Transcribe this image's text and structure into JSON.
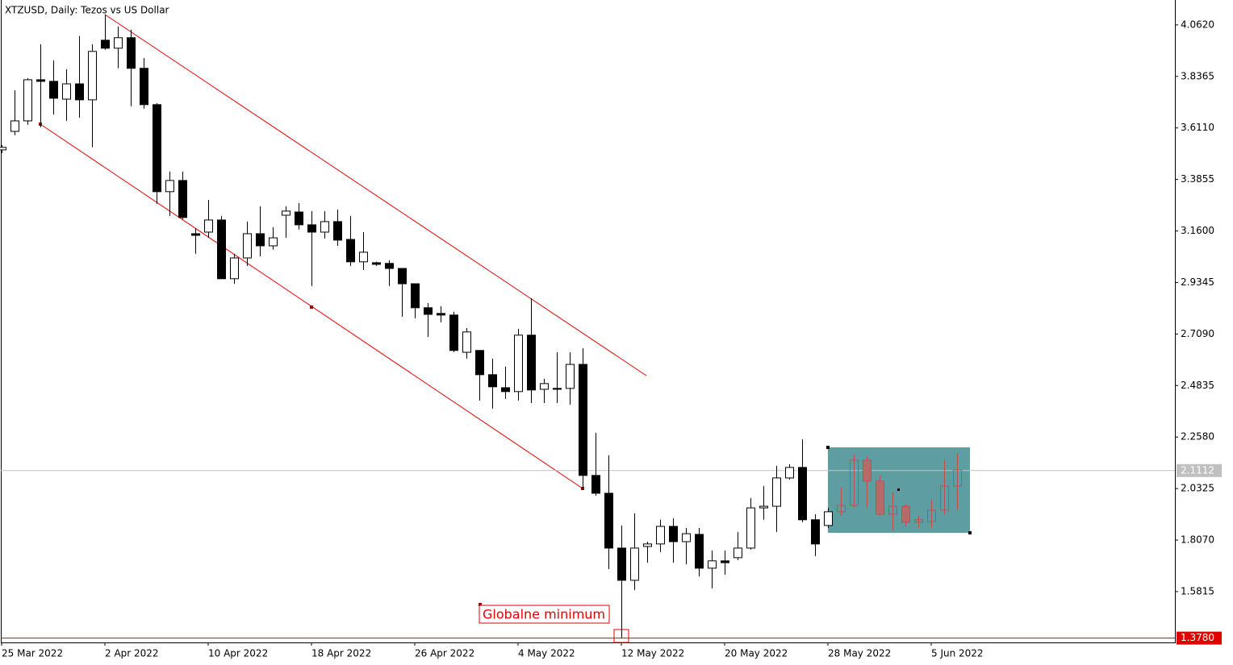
{
  "chart_data": {
    "type": "candlestick",
    "title": "XTZUSD, Daily:  Tezos vs US Dollar",
    "categories": [
      "25 Mar 2022",
      null,
      null,
      null,
      null,
      null,
      null,
      null,
      "2 Apr 2022",
      null,
      null,
      null,
      null,
      null,
      null,
      null,
      "10 Apr 2022",
      null,
      null,
      null,
      null,
      null,
      null,
      null,
      "18 Apr 2022",
      null,
      null,
      null,
      null,
      null,
      null,
      null,
      "26 Apr 2022",
      null,
      null,
      null,
      null,
      null,
      null,
      null,
      "4 May 2022",
      null,
      null,
      null,
      null,
      null,
      null,
      null,
      "12 May 2022",
      null,
      null,
      null,
      null,
      null,
      null,
      null,
      "20 May 2022",
      null,
      null,
      null,
      null,
      null,
      null,
      null,
      "28 May 2022",
      null,
      null,
      null,
      null,
      null,
      null,
      null,
      "5 Jun 2022",
      null,
      null
    ],
    "series": [
      {
        "up_color": "#ffffff",
        "down_color": "#000000",
        "line_color": "#000000",
        "open": [
          3.515,
          3.596,
          3.642,
          3.822,
          3.815,
          3.737,
          3.804,
          3.734,
          3.995,
          3.96,
          4.006,
          3.872,
          3.713,
          3.332,
          3.381,
          3.148,
          3.155,
          3.208,
          2.951,
          3.042,
          3.148,
          3.095,
          3.229,
          3.243,
          3.187,
          3.155,
          3.201,
          3.123,
          3.025,
          3.021,
          3.018,
          2.996,
          2.929,
          2.824,
          2.799,
          2.792,
          2.629,
          2.637,
          2.531,
          2.474,
          2.457,
          2.704,
          2.467,
          2.471,
          2.471,
          2.576,
          2.09,
          2.012,
          1.772,
          1.631,
          1.779,
          1.79,
          1.867,
          1.8,
          1.832,
          1.684,
          1.716,
          1.73,
          1.772,
          1.948,
          1.955,
          2.079,
          2.125,
          1.896,
          1.871,
          null,
          null,
          null,
          null,
          null,
          null,
          null,
          null,
          null,
          null
        ],
        "high": [
          3.536,
          3.776,
          3.829,
          3.977,
          3.907,
          3.868,
          4.013,
          3.977,
          4.108,
          4.055,
          4.041,
          3.917,
          3.72,
          3.42,
          3.42,
          3.173,
          3.296,
          3.226,
          3.06,
          3.201,
          3.268,
          3.176,
          3.268,
          3.282,
          3.247,
          3.247,
          3.254,
          3.226,
          3.155,
          3.025,
          3.032,
          2.996,
          2.929,
          2.845,
          2.831,
          2.806,
          2.735,
          2.637,
          2.601,
          2.566,
          2.732,
          2.866,
          2.513,
          2.629,
          2.629,
          2.647,
          2.277,
          2.178,
          1.871,
          1.924,
          1.8,
          1.896,
          1.903,
          1.86,
          1.86,
          1.761,
          1.761,
          1.843,
          1.991,
          2.044,
          2.132,
          2.139,
          2.248,
          1.92,
          1.948,
          null,
          null,
          null,
          null,
          null,
          null,
          null,
          null,
          null,
          null
        ],
        "low": [
          3.501,
          3.579,
          3.625,
          3.614,
          3.67,
          3.642,
          3.656,
          3.526,
          3.953,
          3.872,
          3.706,
          3.695,
          3.279,
          3.226,
          3.212,
          3.06,
          3.13,
          2.951,
          2.929,
          3.007,
          3.049,
          3.078,
          3.13,
          3.166,
          2.919,
          3.127,
          3.095,
          3.007,
          2.989,
          3.007,
          2.919,
          2.785,
          2.778,
          2.696,
          2.76,
          2.629,
          2.601,
          2.418,
          2.382,
          2.425,
          2.418,
          2.407,
          2.407,
          2.407,
          2.4,
          2.033,
          2.001,
          1.68,
          1.378,
          1.588,
          1.708,
          1.754,
          1.708,
          1.701,
          1.648,
          1.596,
          1.656,
          1.719,
          1.765,
          1.896,
          1.843,
          2.072,
          1.885,
          1.737,
          1.86,
          null,
          null,
          null,
          null,
          null,
          null,
          null,
          null,
          null,
          null
        ],
        "close": [
          3.526,
          3.642,
          3.822,
          3.815,
          3.741,
          3.804,
          3.734,
          3.946,
          3.96,
          4.006,
          3.872,
          3.713,
          3.332,
          3.381,
          3.219,
          3.141,
          3.208,
          2.951,
          3.042,
          3.148,
          3.095,
          3.13,
          3.247,
          3.187,
          3.155,
          3.201,
          3.12,
          3.025,
          3.067,
          3.014,
          2.996,
          2.929,
          2.824,
          2.795,
          2.792,
          2.637,
          2.718,
          2.531,
          2.478,
          2.457,
          2.704,
          2.464,
          2.492,
          2.467,
          2.576,
          2.09,
          2.012,
          1.772,
          1.631,
          1.772,
          1.79,
          1.867,
          1.8,
          1.835,
          1.684,
          1.716,
          1.708,
          1.772,
          1.948,
          1.955,
          2.079,
          2.125,
          1.896,
          1.79,
          1.931,
          null,
          null,
          null,
          null,
          null,
          null,
          null,
          null,
          null,
          null
        ]
      },
      {
        "up_color": "none",
        "down_color": "#b86a6a",
        "line_color": "#c05050",
        "open": [
          null,
          null,
          null,
          null,
          null,
          null,
          null,
          null,
          null,
          null,
          null,
          null,
          null,
          null,
          null,
          null,
          null,
          null,
          null,
          null,
          null,
          null,
          null,
          null,
          null,
          null,
          null,
          null,
          null,
          null,
          null,
          null,
          null,
          null,
          null,
          null,
          null,
          null,
          null,
          null,
          null,
          null,
          null,
          null,
          null,
          null,
          null,
          null,
          null,
          null,
          null,
          null,
          null,
          null,
          null,
          null,
          null,
          null,
          null,
          null,
          null,
          null,
          null,
          null,
          null,
          1.931,
          1.959,
          2.157,
          2.065,
          1.92,
          1.955,
          1.885,
          1.888,
          1.938,
          2.044
        ],
        "high": [
          null,
          null,
          null,
          null,
          null,
          null,
          null,
          null,
          null,
          null,
          null,
          null,
          null,
          null,
          null,
          null,
          null,
          null,
          null,
          null,
          null,
          null,
          null,
          null,
          null,
          null,
          null,
          null,
          null,
          null,
          null,
          null,
          null,
          null,
          null,
          null,
          null,
          null,
          null,
          null,
          null,
          null,
          null,
          null,
          null,
          null,
          null,
          null,
          null,
          null,
          null,
          null,
          null,
          null,
          null,
          null,
          null,
          null,
          null,
          null,
          null,
          null,
          null,
          null,
          null,
          2.037,
          2.185,
          2.174,
          2.09,
          2.019,
          1.966,
          1.913,
          1.984,
          2.16,
          2.188
        ],
        "low": [
          null,
          null,
          null,
          null,
          null,
          null,
          null,
          null,
          null,
          null,
          null,
          null,
          null,
          null,
          null,
          null,
          null,
          null,
          null,
          null,
          null,
          null,
          null,
          null,
          null,
          null,
          null,
          null,
          null,
          null,
          null,
          null,
          null,
          null,
          null,
          null,
          null,
          null,
          null,
          null,
          null,
          null,
          null,
          null,
          null,
          null,
          null,
          null,
          null,
          null,
          null,
          null,
          null,
          null,
          null,
          null,
          null,
          null,
          null,
          null,
          null,
          null,
          null,
          null,
          null,
          1.913,
          1.948,
          1.948,
          1.913,
          1.85,
          1.867,
          1.86,
          1.86,
          1.92,
          1.938
        ],
        "close": [
          null,
          null,
          null,
          null,
          null,
          null,
          null,
          null,
          null,
          null,
          null,
          null,
          null,
          null,
          null,
          null,
          null,
          null,
          null,
          null,
          null,
          null,
          null,
          null,
          null,
          null,
          null,
          null,
          null,
          null,
          null,
          null,
          null,
          null,
          null,
          null,
          null,
          null,
          null,
          null,
          null,
          null,
          null,
          null,
          null,
          null,
          null,
          null,
          null,
          null,
          null,
          null,
          null,
          null,
          null,
          null,
          null,
          null,
          null,
          null,
          null,
          null,
          null,
          null,
          null,
          1.959,
          2.157,
          2.065,
          1.92,
          1.955,
          1.885,
          1.896,
          1.938,
          2.044,
          2.114
        ]
      }
    ],
    "ylim": [
      1.359,
      4.171
    ],
    "yticks": [
      {
        "value": 4.062,
        "label": "4.0620"
      },
      {
        "value": 3.8365,
        "label": "3.8365"
      },
      {
        "value": 3.611,
        "label": "3.6110"
      },
      {
        "value": 3.3855,
        "label": "3.3855"
      },
      {
        "value": 3.16,
        "label": "3.1600"
      },
      {
        "value": 2.9345,
        "label": "2.9345"
      },
      {
        "value": 2.709,
        "label": "2.7090"
      },
      {
        "value": 2.4835,
        "label": "2.4835"
      },
      {
        "value": 2.258,
        "label": "2.2580"
      },
      {
        "value": 2.0325,
        "label": "2.0325"
      },
      {
        "value": 1.807,
        "label": "1.8070"
      },
      {
        "value": 1.5815,
        "label": "1.5815"
      }
    ],
    "price_lines": [
      {
        "value": 2.1112,
        "label": "2.1112",
        "color": "#c0c0c0"
      },
      {
        "value": 1.378,
        "label": "1.3780",
        "color": "#e00000"
      }
    ],
    "annotation": "Globalne minimum"
  }
}
